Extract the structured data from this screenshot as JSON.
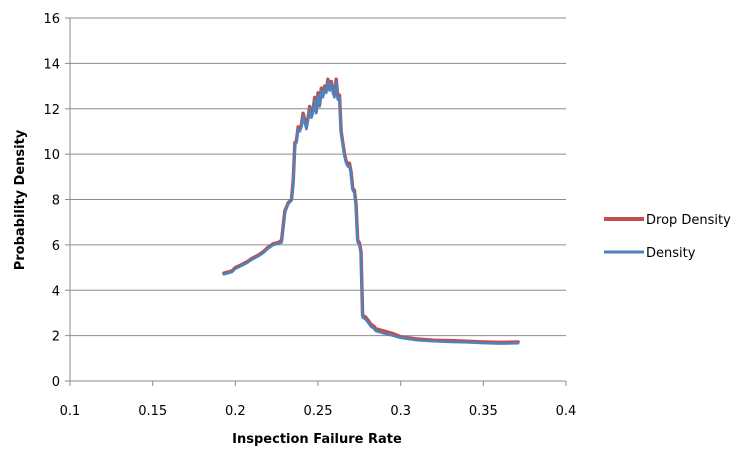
{
  "chart_data": {
    "type": "line",
    "title": "",
    "xlabel": "Inspection Failure Rate",
    "ylabel": "Probability Density",
    "xlim": [
      0.1,
      0.4
    ],
    "ylim": [
      0,
      16
    ],
    "xticks": [
      "0.1",
      "0.15",
      "0.2",
      "0.25",
      "0.3",
      "0.35",
      "0.4"
    ],
    "yticks": [
      "0",
      "2",
      "4",
      "6",
      "8",
      "10",
      "12",
      "14",
      "16"
    ],
    "xtick_values": [
      0.1,
      0.15,
      0.2,
      0.25,
      0.3,
      0.35,
      0.4
    ],
    "ytick_values": [
      0,
      2,
      4,
      6,
      8,
      10,
      12,
      14,
      16
    ],
    "grid": "horizontal",
    "legend_position": "right",
    "series": [
      {
        "name": "Drop Density",
        "color": "#C0504D",
        "x": [
          0.193,
          0.198,
          0.2,
          0.203,
          0.207,
          0.21,
          0.214,
          0.217,
          0.22,
          0.223,
          0.226,
          0.228,
          0.23,
          0.232,
          0.234,
          0.235,
          0.236,
          0.237,
          0.238,
          0.239,
          0.24,
          0.241,
          0.242,
          0.243,
          0.244,
          0.245,
          0.246,
          0.247,
          0.248,
          0.249,
          0.25,
          0.251,
          0.252,
          0.253,
          0.254,
          0.255,
          0.256,
          0.257,
          0.258,
          0.259,
          0.26,
          0.261,
          0.262,
          0.263,
          0.264,
          0.265,
          0.266,
          0.267,
          0.268,
          0.269,
          0.27,
          0.271,
          0.272,
          0.273,
          0.274,
          0.275,
          0.276,
          0.277,
          0.278,
          0.279,
          0.28,
          0.281,
          0.282,
          0.283,
          0.284,
          0.285,
          0.29,
          0.295,
          0.3,
          0.31,
          0.32,
          0.33,
          0.34,
          0.35,
          0.36,
          0.371
        ],
        "y": [
          4.75,
          4.85,
          5.0,
          5.1,
          5.25,
          5.4,
          5.55,
          5.7,
          5.9,
          6.05,
          6.1,
          6.2,
          7.5,
          7.85,
          8.0,
          8.8,
          10.5,
          10.6,
          11.2,
          11.1,
          11.3,
          11.8,
          11.5,
          11.2,
          11.6,
          12.1,
          11.7,
          11.9,
          12.5,
          11.9,
          12.7,
          12.2,
          12.9,
          12.6,
          13.0,
          12.8,
          13.3,
          12.9,
          13.2,
          12.8,
          12.6,
          13.3,
          12.5,
          12.6,
          11.0,
          10.5,
          10.0,
          9.7,
          9.55,
          9.6,
          9.2,
          8.5,
          8.4,
          7.8,
          6.2,
          6.1,
          5.7,
          2.9,
          2.85,
          2.8,
          2.7,
          2.6,
          2.5,
          2.45,
          2.4,
          2.3,
          2.2,
          2.1,
          1.95,
          1.85,
          1.8,
          1.78,
          1.75,
          1.72,
          1.7,
          1.72
        ]
      },
      {
        "name": "Density",
        "color": "#4F81BD",
        "x": [
          0.193,
          0.198,
          0.2,
          0.203,
          0.207,
          0.21,
          0.214,
          0.217,
          0.22,
          0.223,
          0.226,
          0.228,
          0.23,
          0.232,
          0.234,
          0.235,
          0.236,
          0.237,
          0.238,
          0.239,
          0.24,
          0.241,
          0.242,
          0.243,
          0.244,
          0.245,
          0.246,
          0.247,
          0.248,
          0.249,
          0.25,
          0.251,
          0.252,
          0.253,
          0.254,
          0.255,
          0.256,
          0.257,
          0.258,
          0.259,
          0.26,
          0.261,
          0.262,
          0.263,
          0.264,
          0.265,
          0.266,
          0.267,
          0.268,
          0.269,
          0.27,
          0.271,
          0.272,
          0.273,
          0.274,
          0.275,
          0.276,
          0.277,
          0.278,
          0.279,
          0.28,
          0.281,
          0.282,
          0.283,
          0.284,
          0.285,
          0.29,
          0.295,
          0.3,
          0.31,
          0.32,
          0.33,
          0.34,
          0.35,
          0.36,
          0.371
        ],
        "y": [
          4.7,
          4.8,
          4.95,
          5.05,
          5.2,
          5.35,
          5.5,
          5.65,
          5.85,
          6.0,
          6.05,
          6.1,
          7.4,
          7.8,
          7.95,
          8.7,
          10.4,
          10.5,
          11.1,
          11.0,
          11.2,
          11.7,
          11.4,
          11.1,
          11.5,
          12.0,
          11.6,
          11.8,
          12.4,
          11.8,
          12.6,
          12.1,
          12.8,
          12.5,
          12.9,
          12.7,
          13.2,
          12.8,
          13.1,
          12.7,
          12.5,
          13.2,
          12.4,
          12.5,
          10.9,
          10.4,
          9.9,
          9.6,
          9.45,
          9.5,
          9.1,
          8.4,
          8.3,
          7.7,
          6.1,
          6.0,
          5.6,
          2.8,
          2.75,
          2.7,
          2.6,
          2.5,
          2.4,
          2.35,
          2.3,
          2.2,
          2.1,
          2.0,
          1.9,
          1.8,
          1.75,
          1.72,
          1.7,
          1.67,
          1.65,
          1.66
        ]
      }
    ]
  }
}
